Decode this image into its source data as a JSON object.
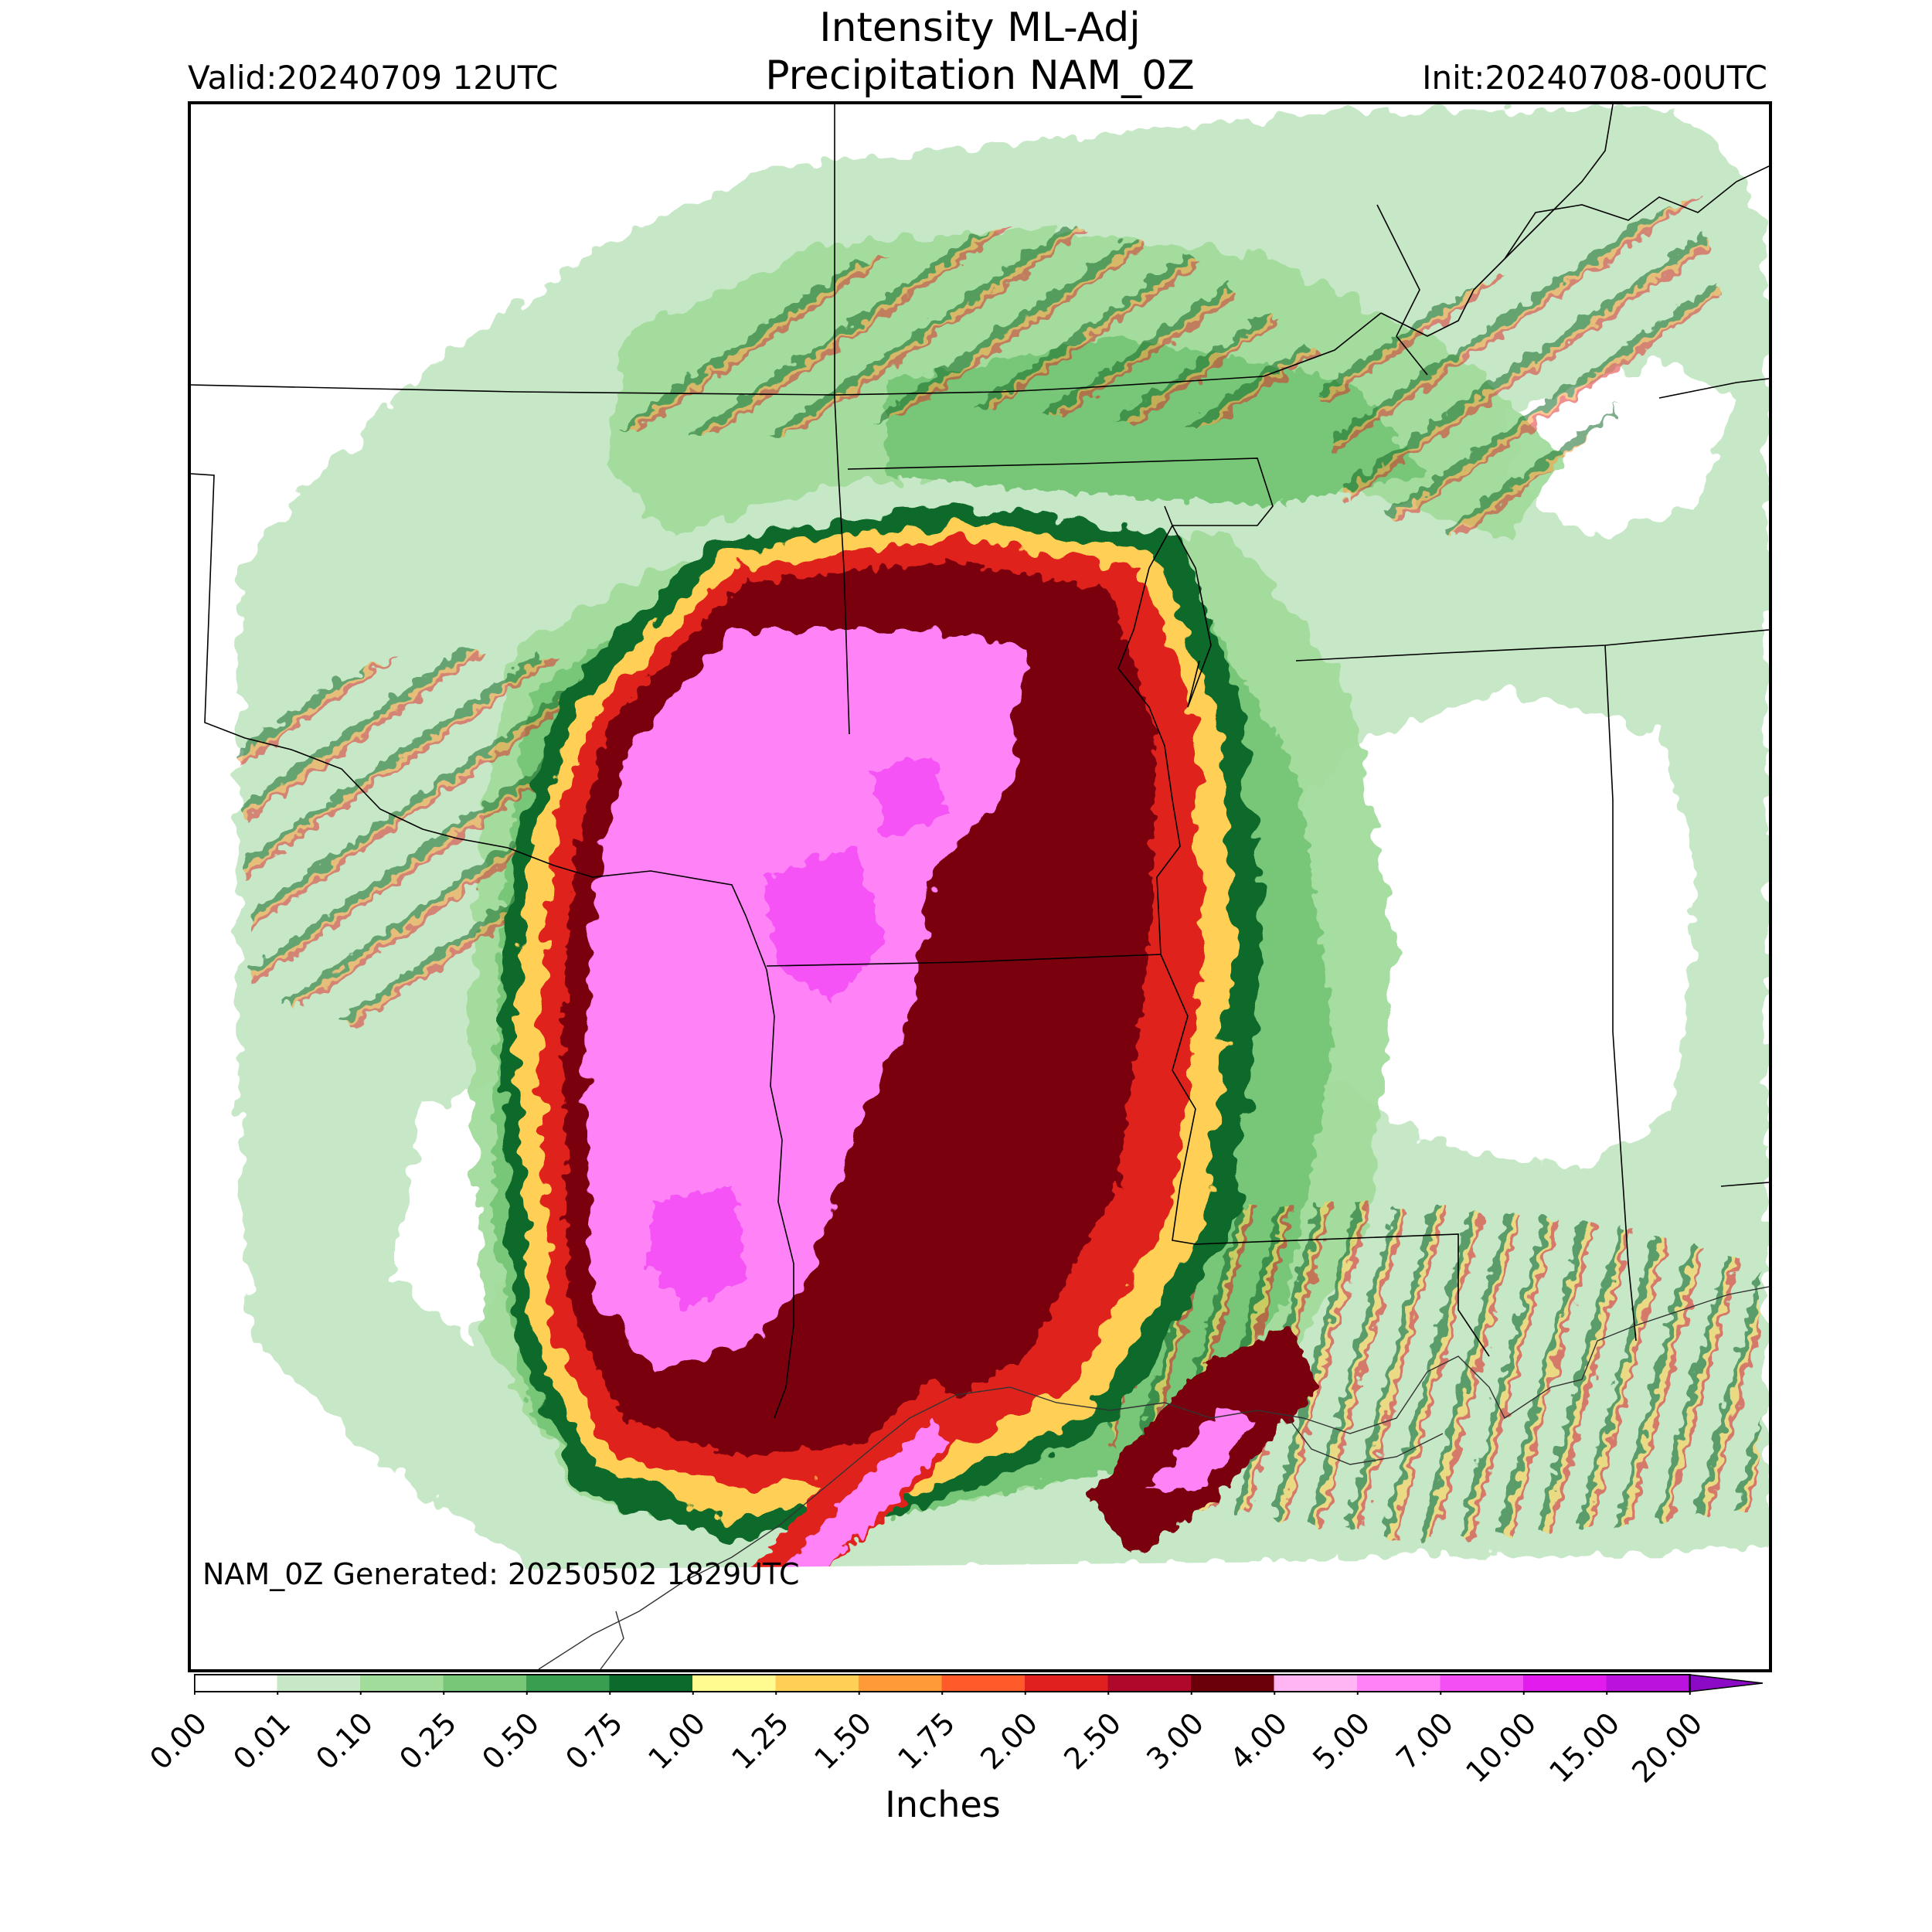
{
  "header": {
    "title_line1": "Intensity ML-Adj",
    "title_line2": "Precipitation NAM_0Z",
    "valid": "Valid:20240709 12UTC",
    "init": "Init:20240708-00UTC"
  },
  "footer": {
    "generated": "NAM_0Z Generated: 20250502 1829UTC"
  },
  "colorbar": {
    "units_label": "Inches",
    "tick_labels": [
      "0.00",
      "0.01",
      "0.10",
      "0.25",
      "0.50",
      "0.75",
      "1.00",
      "1.25",
      "1.50",
      "1.75",
      "2.00",
      "2.50",
      "3.00",
      "4.00",
      "5.00",
      "7.00",
      "10.00",
      "15.00",
      "20.00"
    ],
    "colors": [
      "#ffffff",
      "#c7e8c7",
      "#a2dc9b",
      "#78c678",
      "#3a9e50",
      "#0c6a2c",
      "#fffb90",
      "#ffd055",
      "#ff9a38",
      "#ff5b2a",
      "#e0201e",
      "#b0082a",
      "#6b0008",
      "#ffb4f4",
      "#ff82f7",
      "#f44ff5",
      "#e21ced",
      "#bb12dd",
      "#8a0ac6"
    ],
    "extend": "max"
  },
  "map": {
    "region": "South-central United States",
    "field": "precipitation",
    "max_category": "4.00-5.00+ inches",
    "colors": {
      "light_green": "#c7e8c7",
      "mid_green": "#78c678",
      "dark_green": "#0c6a2c",
      "yellow": "#fff07a",
      "orange": "#ff9a38",
      "red": "#e0201e",
      "dark_red": "#7a0010",
      "pink": "#ff82f7",
      "magenta": "#e84cf0"
    }
  }
}
